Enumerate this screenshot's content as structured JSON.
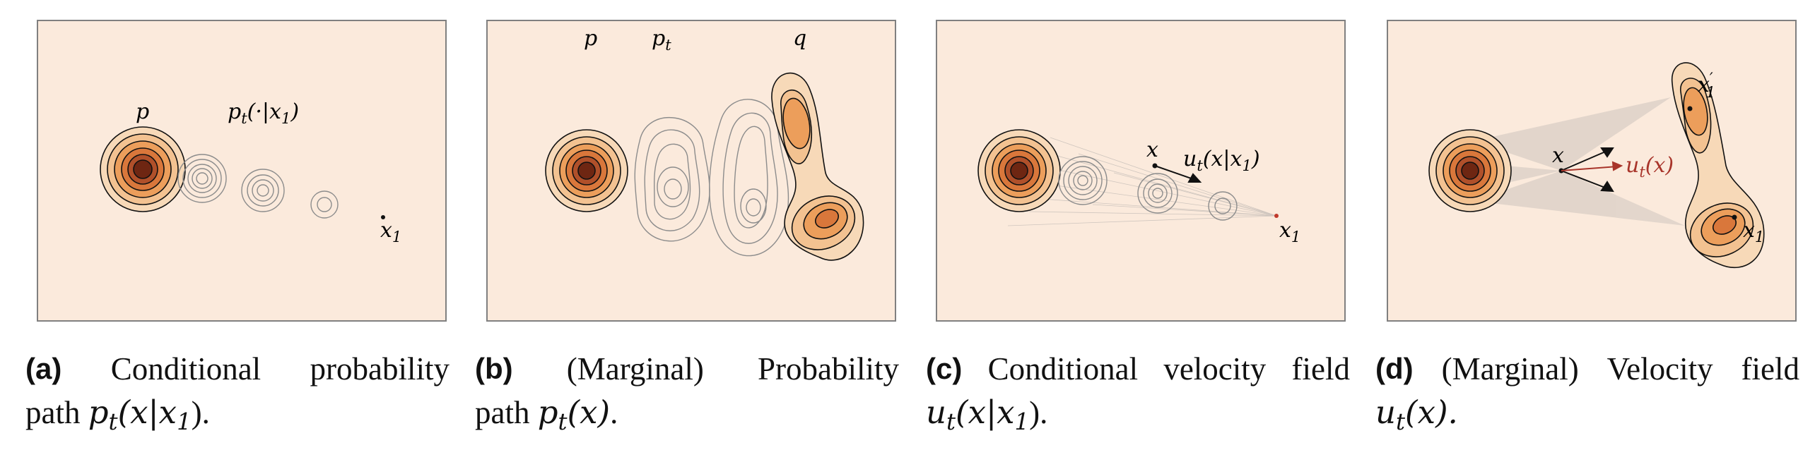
{
  "colors": {
    "background": "#fbeadc",
    "density_outer": "#f7d9b8",
    "density_mid": "#ef9f5a",
    "density_inner": "#c45a26",
    "density_core": "#6e2612",
    "contour_gray": "#8c8c8c",
    "velocity_red": "#a8342a"
  },
  "panels": [
    {
      "id": "a",
      "labels": {
        "p": "p",
        "pt_cond": "p",
        "pt_sub": "t",
        "pt_arg": "(·|x",
        "pt_arg_sub": "1",
        "pt_close": ")",
        "x1": "x",
        "x1_sub": "1"
      },
      "caption": {
        "tag": "(a)",
        "words": [
          "Conditional",
          "probability"
        ],
        "line2_prefix": "path ",
        "line2_math": "p",
        "line2_sub": "t",
        "line2_arg": "(x|x",
        "line2_arg_sub": "1",
        "line2_close": ").",
        "end": ""
      }
    },
    {
      "id": "b",
      "labels": {
        "p": "p",
        "pt": "p",
        "pt_sub": "t",
        "q": "q"
      },
      "caption": {
        "tag": "(b)",
        "words": [
          "(Marginal)",
          "Probability"
        ],
        "line2_prefix": "path ",
        "line2_math": "p",
        "line2_sub": "t",
        "line2_arg": "(x)",
        "line2_arg_sub": "",
        "line2_close": ".",
        "end": ""
      }
    },
    {
      "id": "c",
      "labels": {
        "x": "x",
        "u": "u",
        "u_sub": "t",
        "u_arg": "(x|x",
        "u_arg_sub": "1",
        "u_close": ")",
        "x1": "x",
        "x1_sub": "1"
      },
      "caption": {
        "tag": "(c)",
        "words": [
          "Conditional",
          "velocity",
          "field"
        ],
        "line2_prefix": "",
        "line2_math": "u",
        "line2_sub": "t",
        "line2_arg": "(x|x",
        "line2_arg_sub": "1",
        "line2_close": ").",
        "end": ""
      }
    },
    {
      "id": "d",
      "labels": {
        "x": "x",
        "u": "u",
        "u_sub": "t",
        "u_arg": "(x)",
        "x1p": "x",
        "x1p_sub": "1",
        "x1p_prime": "′",
        "x1": "x",
        "x1_sub": "1"
      },
      "caption": {
        "tag": "(d)",
        "words": [
          "(Marginal)",
          "Velocity",
          "field"
        ],
        "line2_prefix": "",
        "line2_math": "u",
        "line2_sub": "t",
        "line2_arg": "(x).",
        "line2_arg_sub": "",
        "line2_close": "",
        "end": ""
      }
    }
  ]
}
